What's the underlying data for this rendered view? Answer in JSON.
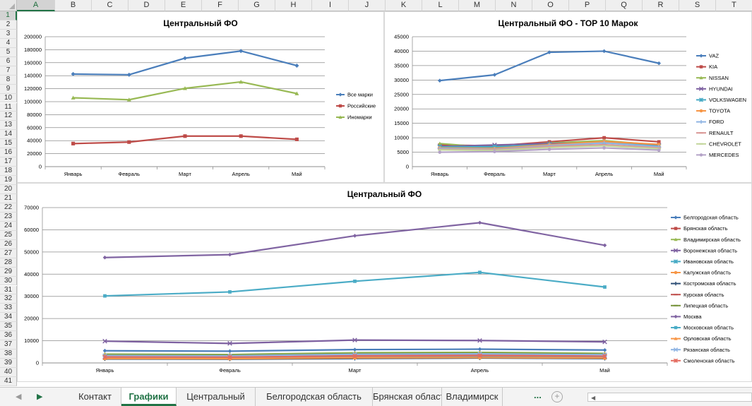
{
  "spreadsheet": {
    "active_cell_column": "A",
    "active_cell_row": "1",
    "column_headers": [
      "A",
      "B",
      "C",
      "D",
      "E",
      "F",
      "G",
      "H",
      "I",
      "J",
      "K",
      "L",
      "M",
      "N",
      "O",
      "P",
      "Q",
      "R",
      "S",
      "T"
    ],
    "row_headers": [
      "1",
      "2",
      "3",
      "4",
      "5",
      "6",
      "7",
      "8",
      "9",
      "10",
      "11",
      "12",
      "13",
      "14",
      "15",
      "16",
      "17",
      "18",
      "19",
      "20",
      "21",
      "22",
      "23",
      "24",
      "25",
      "26",
      "27",
      "28",
      "29",
      "30",
      "31",
      "32",
      "33",
      "34",
      "35",
      "36",
      "37",
      "38",
      "39",
      "40",
      "41"
    ]
  },
  "sheet_tabs": {
    "tabs": [
      "Контакт",
      "Графики",
      "Центральный",
      "Белгородская область",
      "Брянская область",
      "Владимирск"
    ],
    "active_tab": "Графики",
    "more": "..."
  },
  "chart_data": [
    {
      "type": "line",
      "title": "Центральный ФО",
      "categories": [
        "Январь",
        "Февраль",
        "Март",
        "Апрель",
        "Май"
      ],
      "ylim": [
        0,
        200000
      ],
      "yticks": [
        0,
        20000,
        40000,
        60000,
        80000,
        100000,
        120000,
        140000,
        160000,
        180000,
        200000
      ],
      "grid": true,
      "legend_position": "right",
      "series": [
        {
          "name": "Все марки",
          "color": "#4a7ebb",
          "marker": "diamond",
          "values": [
            142500,
            141500,
            167000,
            178000,
            155500
          ]
        },
        {
          "name": "Российские",
          "color": "#be4b48",
          "marker": "square",
          "values": [
            35500,
            37800,
            47000,
            47000,
            42000
          ]
        },
        {
          "name": "Иномарки",
          "color": "#98b954",
          "marker": "triangle",
          "values": [
            106000,
            103000,
            120500,
            130500,
            112500
          ]
        }
      ]
    },
    {
      "type": "line",
      "title": "Центральный ФО - TOP 10 Марок",
      "categories": [
        "Январь",
        "Февраль",
        "Март",
        "Апрель",
        "Май"
      ],
      "ylim": [
        0,
        45000
      ],
      "yticks": [
        0,
        5000,
        10000,
        15000,
        20000,
        25000,
        30000,
        35000,
        40000,
        45000
      ],
      "grid": true,
      "legend_position": "right",
      "series": [
        {
          "name": "VAZ",
          "color": "#4a7ebb",
          "marker": "diamond",
          "values": [
            29800,
            31800,
            39600,
            40000,
            35800
          ]
        },
        {
          "name": "KIA",
          "color": "#be4b48",
          "marker": "square",
          "values": [
            7500,
            7200,
            8600,
            10000,
            8600
          ]
        },
        {
          "name": "NISSAN",
          "color": "#98b954",
          "marker": "triangle",
          "values": [
            8000,
            6500,
            8200,
            9000,
            7500
          ]
        },
        {
          "name": "HYUNDAI",
          "color": "#7d60a0",
          "marker": "x",
          "values": [
            7000,
            7500,
            8000,
            8200,
            7400
          ]
        },
        {
          "name": "VOLKSWAGEN",
          "color": "#46aac5",
          "marker": "star",
          "values": [
            6800,
            6900,
            7600,
            8300,
            7100
          ]
        },
        {
          "name": "TOYOTA",
          "color": "#f79646",
          "marker": "circle",
          "values": [
            6500,
            6300,
            7600,
            8700,
            7700
          ]
        },
        {
          "name": "FORD",
          "color": "#8eb4e3",
          "marker": "plus",
          "values": [
            6300,
            6000,
            7300,
            8200,
            6900
          ]
        },
        {
          "name": "RENAULT",
          "color": "#d99694",
          "marker": "dash",
          "values": [
            6000,
            5800,
            7000,
            7600,
            6500
          ]
        },
        {
          "name": "CHEVROLET",
          "color": "#c3d69b",
          "marker": "dash",
          "values": [
            5800,
            5600,
            6600,
            7200,
            6200
          ]
        },
        {
          "name": "MERCEDES",
          "color": "#b3a2c7",
          "marker": "circle",
          "values": [
            5000,
            5200,
            6000,
            6500,
            5700
          ]
        }
      ]
    },
    {
      "type": "line",
      "title": "Центральный ФО",
      "categories": [
        "Январь",
        "Февраль",
        "Март",
        "Апрель",
        "Май"
      ],
      "ylim": [
        0,
        70000
      ],
      "yticks": [
        0,
        10000,
        20000,
        30000,
        40000,
        50000,
        60000,
        70000
      ],
      "grid": true,
      "legend_position": "right",
      "series": [
        {
          "name": "Белгородская область",
          "color": "#4a7ebb",
          "marker": "diamond",
          "values": [
            5500,
            5300,
            6000,
            6200,
            5800
          ]
        },
        {
          "name": "Брянская область",
          "color": "#be4b48",
          "marker": "square",
          "values": [
            3000,
            2900,
            3500,
            3600,
            3300
          ]
        },
        {
          "name": "Владимирская область",
          "color": "#98b954",
          "marker": "triangle",
          "values": [
            4000,
            3800,
            4600,
            4800,
            4300
          ]
        },
        {
          "name": "Воронежская область",
          "color": "#7d60a0",
          "marker": "x",
          "values": [
            9800,
            8800,
            10300,
            10100,
            9500
          ]
        },
        {
          "name": "Ивановская область",
          "color": "#46aac5",
          "marker": "star",
          "values": [
            2500,
            2400,
            2900,
            3000,
            2700
          ]
        },
        {
          "name": "Калужская область",
          "color": "#f79646",
          "marker": "circle",
          "values": [
            3500,
            3400,
            4100,
            4300,
            3900
          ]
        },
        {
          "name": "Костромская область",
          "color": "#2c4d75",
          "marker": "plus",
          "values": [
            1800,
            1700,
            2000,
            2200,
            2000
          ]
        },
        {
          "name": "Курская область",
          "color": "#c0504d",
          "marker": "dash",
          "values": [
            3200,
            3100,
            3800,
            4000,
            3600
          ]
        },
        {
          "name": "Липецкая область",
          "color": "#77933c",
          "marker": "dash",
          "values": [
            3600,
            3500,
            4200,
            4400,
            4000
          ]
        },
        {
          "name": "Москва",
          "color": "#8064a2",
          "marker": "diamond",
          "values": [
            47500,
            48800,
            57300,
            63200,
            53000
          ]
        },
        {
          "name": "Московская область",
          "color": "#4bacc6",
          "marker": "square",
          "values": [
            30200,
            32000,
            36800,
            40800,
            34200
          ]
        },
        {
          "name": "Орловская область",
          "color": "#f79646",
          "marker": "triangle",
          "values": [
            2000,
            1900,
            2300,
            2400,
            2200
          ]
        },
        {
          "name": "Рязанская область",
          "color": "#8eb4e3",
          "marker": "x",
          "values": [
            3300,
            3200,
            3900,
            4100,
            3700
          ]
        },
        {
          "name": "Смоленская область",
          "color": "#e46c60",
          "marker": "star",
          "values": [
            2700,
            2600,
            3100,
            3300,
            3000
          ]
        }
      ]
    }
  ]
}
